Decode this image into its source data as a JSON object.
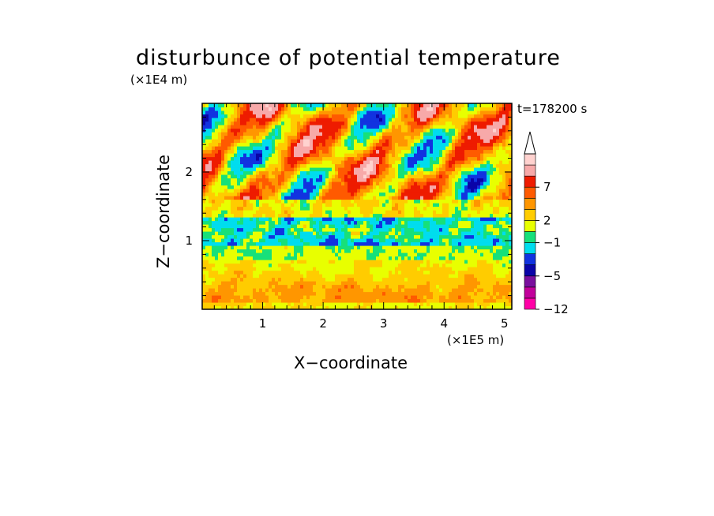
{
  "chart_data": {
    "type": "heatmap",
    "title": "disturbunce of potential temperature",
    "time_label": "t=178200 s",
    "xlabel": "X−coordinate",
    "ylabel": "Z−coordinate",
    "x_unit": "(×1E5 m)",
    "y_unit": "(×1E4 m)",
    "xlim": [
      0,
      5.12
    ],
    "ylim": [
      0,
      3.0
    ],
    "x_ticks": [
      "1",
      "2",
      "3",
      "4",
      "5"
    ],
    "y_ticks": [
      "1",
      "2"
    ],
    "colorbar": {
      "labels": [
        "7",
        "2",
        "−1",
        "−5",
        "−12"
      ],
      "extend": "max",
      "colors": [
        "#ff00a6",
        "#c2009b",
        "#7a0f9e",
        "#0a04a8",
        "#1133e0",
        "#00ddee",
        "#17e07a",
        "#e8ff00",
        "#ffcc00",
        "#ff9600",
        "#ff5a00",
        "#ee1b00",
        "#f7a9a9",
        "#ffd2cf"
      ]
    }
  }
}
